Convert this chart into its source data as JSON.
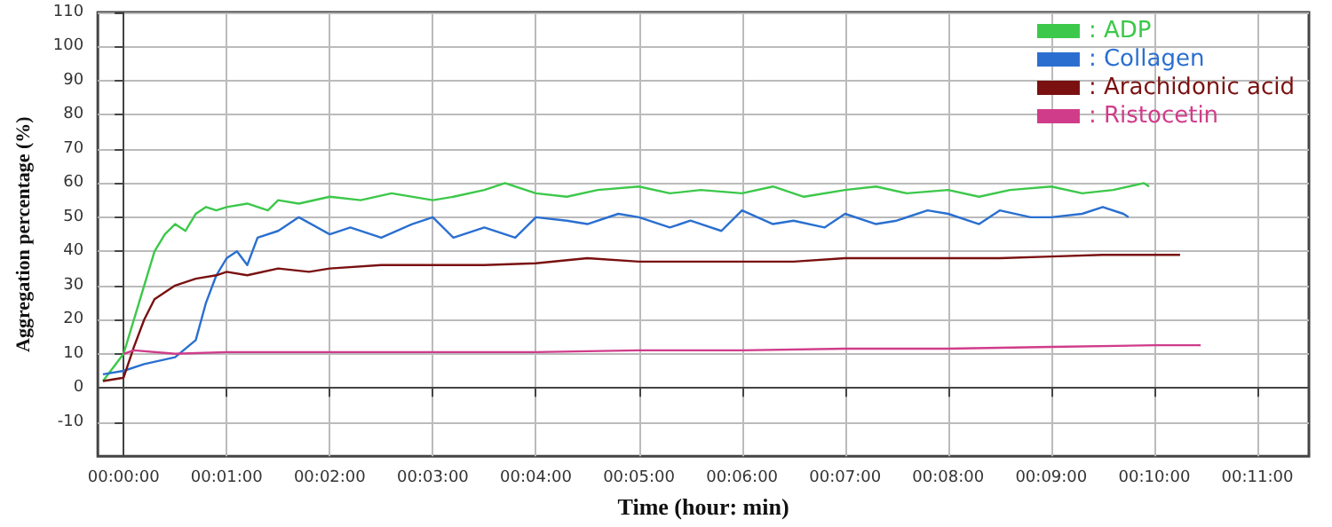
{
  "chart_data": {
    "type": "line",
    "xlabel": "Time (hour: min)",
    "ylabel": "Aggregation percentage (%)",
    "xlim": [
      -0.25,
      11.5
    ],
    "xticks": [
      {
        "value": 0,
        "label": "00:00:00"
      },
      {
        "value": 1,
        "label": "00:01:00"
      },
      {
        "value": 2,
        "label": "00:02:00"
      },
      {
        "value": 3,
        "label": "00:03:00"
      },
      {
        "value": 4,
        "label": "00:04:00"
      },
      {
        "value": 5,
        "label": "00:05:00"
      },
      {
        "value": 6,
        "label": "00:06:00"
      },
      {
        "value": 7,
        "label": "00:07:00"
      },
      {
        "value": 8,
        "label": "00:08:00"
      },
      {
        "value": 9,
        "label": "00:09:00"
      },
      {
        "value": 10,
        "label": "00:10:00"
      },
      {
        "value": 11,
        "label": "00:11:00"
      }
    ],
    "ylim": [
      -20,
      110
    ],
    "yticks": [
      -10,
      0,
      10,
      20,
      30,
      40,
      50,
      60,
      70,
      80,
      90,
      100,
      110
    ],
    "grid": true,
    "legend": "top right",
    "marker": "none",
    "line_style": "solid",
    "series": [
      {
        "name": ": ADP",
        "color": "#3cc84a",
        "x": [
          -0.2,
          0,
          0.1,
          0.2,
          0.3,
          0.4,
          0.5,
          0.6,
          0.7,
          0.8,
          0.9,
          1.0,
          1.2,
          1.4,
          1.5,
          1.7,
          2.0,
          2.3,
          2.6,
          3.0,
          3.2,
          3.5,
          3.7,
          4.0,
          4.3,
          4.6,
          5.0,
          5.3,
          5.6,
          6.0,
          6.3,
          6.6,
          7.0,
          7.3,
          7.6,
          8.0,
          8.3,
          8.6,
          9.0,
          9.3,
          9.6,
          9.9,
          9.95
        ],
        "values": [
          2,
          10,
          20,
          30,
          40,
          45,
          48,
          46,
          51,
          53,
          52,
          53,
          54,
          52,
          55,
          54,
          56,
          55,
          57,
          55,
          56,
          58,
          60,
          57,
          56,
          58,
          59,
          57,
          58,
          57,
          59,
          56,
          58,
          59,
          57,
          58,
          56,
          58,
          59,
          57,
          58,
          60,
          59
        ]
      },
      {
        "name": ": Collagen",
        "color": "#2a6fd0",
        "x": [
          -0.2,
          0,
          0.2,
          0.5,
          0.7,
          0.8,
          0.9,
          1.0,
          1.1,
          1.2,
          1.3,
          1.5,
          1.7,
          2.0,
          2.2,
          2.5,
          2.8,
          3.0,
          3.2,
          3.5,
          3.8,
          4.0,
          4.3,
          4.5,
          4.8,
          5.0,
          5.3,
          5.5,
          5.8,
          6.0,
          6.3,
          6.5,
          6.8,
          7.0,
          7.3,
          7.5,
          7.8,
          8.0,
          8.3,
          8.5,
          8.8,
          9.0,
          9.3,
          9.5,
          9.7,
          9.75
        ],
        "values": [
          4,
          5,
          7,
          9,
          14,
          25,
          33,
          38,
          40,
          36,
          44,
          46,
          50,
          45,
          47,
          44,
          48,
          50,
          44,
          47,
          44,
          50,
          49,
          48,
          51,
          50,
          47,
          49,
          46,
          52,
          48,
          49,
          47,
          51,
          48,
          49,
          52,
          51,
          48,
          52,
          50,
          50,
          51,
          53,
          51,
          50
        ]
      },
      {
        "name": ": Arachidonic acid",
        "color": "#7a1010",
        "x": [
          -0.2,
          0,
          0.1,
          0.2,
          0.3,
          0.5,
          0.7,
          0.9,
          1.0,
          1.2,
          1.5,
          1.8,
          2.0,
          2.5,
          3.0,
          3.5,
          4.0,
          4.5,
          5.0,
          5.5,
          6.0,
          6.5,
          7.0,
          7.5,
          8.0,
          8.5,
          9.0,
          9.5,
          10.0,
          10.25
        ],
        "values": [
          2,
          3,
          12,
          20,
          26,
          30,
          32,
          33,
          34,
          33,
          35,
          34,
          35,
          36,
          36,
          36,
          36.5,
          38,
          37,
          37,
          37,
          37,
          38,
          38,
          38,
          38,
          38.5,
          39,
          39,
          39
        ]
      },
      {
        "name": ": Ristocetin",
        "color": "#d03c8a",
        "x": [
          0,
          0.1,
          0.5,
          1.0,
          2.0,
          3.0,
          4.0,
          5.0,
          6.0,
          7.0,
          8.0,
          9.0,
          10.0,
          10.45
        ],
        "values": [
          10,
          11,
          10,
          10.5,
          10.5,
          10.5,
          10.5,
          11,
          11,
          11.5,
          11.5,
          12,
          12.5,
          12.5
        ]
      }
    ]
  }
}
